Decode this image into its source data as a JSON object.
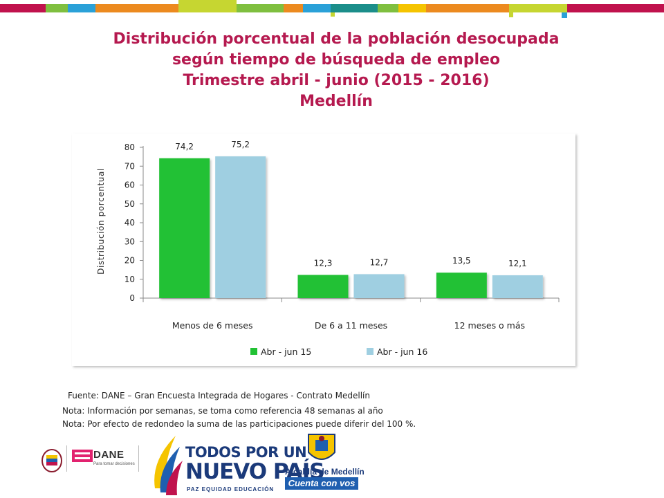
{
  "theme": {
    "title_color": "#b5194f",
    "series_colors": [
      "#21c134",
      "#9fcfe1"
    ],
    "top_bar_colors": [
      "#c0124d",
      "#7fbf3f",
      "#2aa1d8",
      "#ec8a1f",
      "#c6d631",
      "#1b8e8a",
      "#f5c400"
    ]
  },
  "title": {
    "line1": "Distribución porcentual de la población desocupada",
    "line2": "según tiempo de búsqueda de empleo",
    "line3": "Trimestre abril - junio (2015 - 2016)",
    "line4": "Medellín"
  },
  "chart_data": {
    "type": "bar",
    "categories": [
      "Menos de 6 meses",
      "De 6 a 11 meses",
      "12 meses o más"
    ],
    "series": [
      {
        "name": "Abr - jun 15",
        "values": [
          74.2,
          12.3,
          13.5
        ],
        "labels": [
          "74,2",
          "12,3",
          "13,5"
        ]
      },
      {
        "name": "Abr - jun 16",
        "values": [
          75.2,
          12.7,
          12.1
        ],
        "labels": [
          "75,2",
          "12,7",
          "12,1"
        ]
      }
    ],
    "ylabel": "Distribución porcentual",
    "ylim": [
      0,
      80
    ],
    "yticks": [
      0,
      10,
      20,
      30,
      40,
      50,
      60,
      70,
      80
    ],
    "grid": false,
    "legend_position": "bottom"
  },
  "notes": {
    "source": "Fuente: DANE – Gran Encuesta Integrada de Hogares - Contrato Medellín",
    "note1": "Nota: Información por semanas, se toma como referencia 48 semanas al año",
    "note2": "Nota: Por efecto de redondeo la suma de las participaciones puede diferir del 100 %."
  },
  "logos": {
    "dane": "DANE",
    "dane_tagline": "Para tomar decisiones",
    "gov_line1": "TODOS POR UN",
    "gov_line2": "NUEVO PAÍS",
    "gov_line3": "PAZ   EQUIDAD   EDUCACIÓN",
    "alcaldia_line1": "Alcaldía de Medellín",
    "alcaldia_line2": "Cuenta con vos"
  }
}
